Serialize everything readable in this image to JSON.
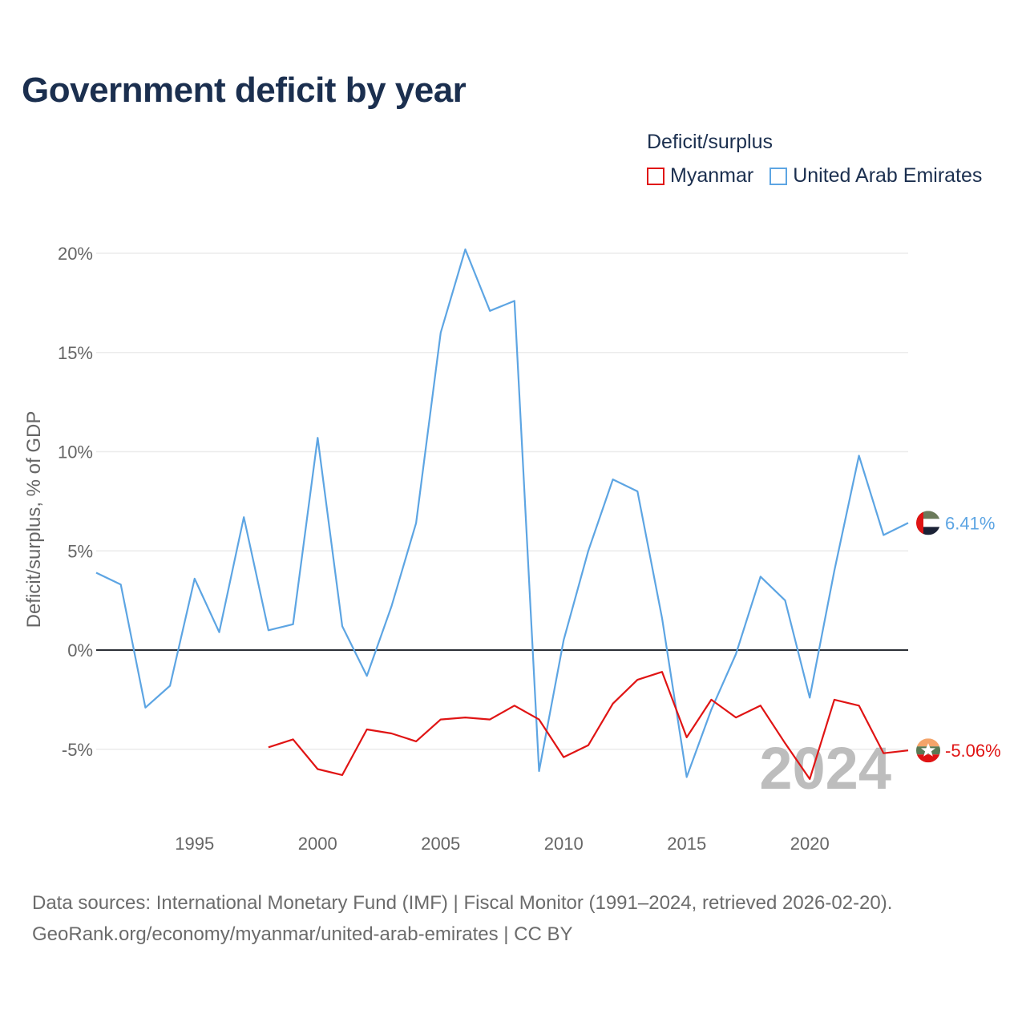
{
  "title": "Government deficit by year",
  "legend": {
    "title": "Deficit/surplus",
    "items": [
      {
        "name": "Myanmar",
        "color": "#e01414"
      },
      {
        "name": "United Arab Emirates",
        "color": "#5da5e3"
      }
    ]
  },
  "footer": {
    "line1": "Data sources: International Monetary Fund (IMF) | Fiscal Monitor (1991–2024, retrieved 2026-02-20).",
    "line2": "GeoRank.org/economy/myanmar/united-arab-emirates | CC BY"
  },
  "chart_data": {
    "type": "line",
    "title": "Government deficit by year",
    "xlabel": "",
    "ylabel": "Deficit/surplus, % of GDP",
    "xlim": [
      1991,
      2024
    ],
    "ylim": [
      -8,
      22
    ],
    "x_ticks": [
      1995,
      2000,
      2005,
      2010,
      2015,
      2020
    ],
    "y_ticks": [
      -5,
      0,
      5,
      10,
      15,
      20
    ],
    "y_tick_labels": [
      "-5%",
      "0%",
      "5%",
      "10%",
      "15%",
      "20%"
    ],
    "grid": true,
    "watermark_year": "2024",
    "series": [
      {
        "name": "United Arab Emirates",
        "color": "#5da5e3",
        "end_label": "6.41%",
        "flag": "uae-flag-icon",
        "x": [
          1991,
          1992,
          1993,
          1994,
          1995,
          1996,
          1997,
          1998,
          1999,
          2000,
          2001,
          2002,
          2003,
          2004,
          2005,
          2006,
          2007,
          2008,
          2009,
          2010,
          2011,
          2012,
          2013,
          2014,
          2015,
          2016,
          2017,
          2018,
          2019,
          2020,
          2021,
          2022,
          2023,
          2024
        ],
        "values": [
          3.9,
          3.3,
          -2.9,
          -1.8,
          3.6,
          0.9,
          6.7,
          1.0,
          1.3,
          10.7,
          1.2,
          -1.3,
          2.2,
          6.4,
          16.0,
          20.2,
          17.1,
          17.6,
          -6.1,
          0.5,
          5.0,
          8.6,
          8.0,
          1.6,
          -6.4,
          -3.0,
          -0.2,
          3.7,
          2.5,
          -2.4,
          4.0,
          9.8,
          5.8,
          6.41
        ]
      },
      {
        "name": "Myanmar",
        "color": "#e01414",
        "end_label": "-5.06%",
        "flag": "myanmar-flag-icon",
        "x": [
          1998,
          1999,
          2000,
          2001,
          2002,
          2003,
          2004,
          2005,
          2006,
          2007,
          2008,
          2009,
          2010,
          2011,
          2012,
          2013,
          2014,
          2015,
          2016,
          2017,
          2018,
          2019,
          2020,
          2021,
          2022,
          2023,
          2024
        ],
        "values": [
          -4.9,
          -4.5,
          -6.0,
          -6.3,
          -4.0,
          -4.2,
          -4.6,
          -3.5,
          -3.4,
          -3.5,
          -2.8,
          -3.5,
          -5.4,
          -4.8,
          -2.7,
          -1.5,
          -1.1,
          -4.4,
          -2.5,
          -3.4,
          -2.8,
          -4.7,
          -6.5,
          -2.5,
          -2.8,
          -5.2,
          -5.06
        ]
      }
    ]
  }
}
